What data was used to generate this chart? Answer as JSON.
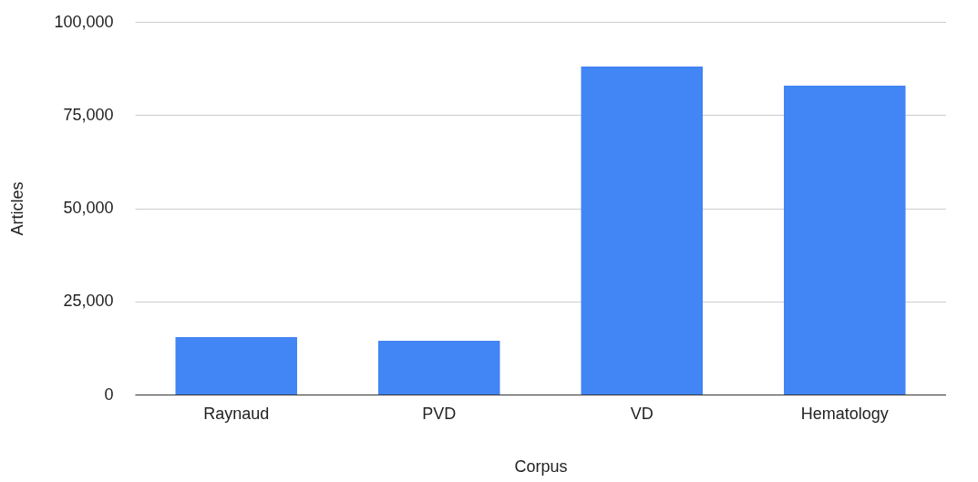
{
  "chart_data": {
    "type": "bar",
    "xlabel": "Corpus",
    "ylabel": "Articles",
    "categories": [
      "Raynaud",
      "PVD",
      "VD",
      "Hematology"
    ],
    "values": [
      15400,
      14400,
      88000,
      82900
    ],
    "color": "#4285f4",
    "ylim": [
      0,
      100000
    ],
    "yticks": [
      0,
      {
        "value": 25000,
        "label": "25,000"
      },
      {
        "value": 50000,
        "label": "50,000"
      },
      {
        "value": 75000,
        "label": "75,000"
      },
      {
        "value": 100000,
        "label": "100,000"
      }
    ],
    "grid": "y"
  }
}
